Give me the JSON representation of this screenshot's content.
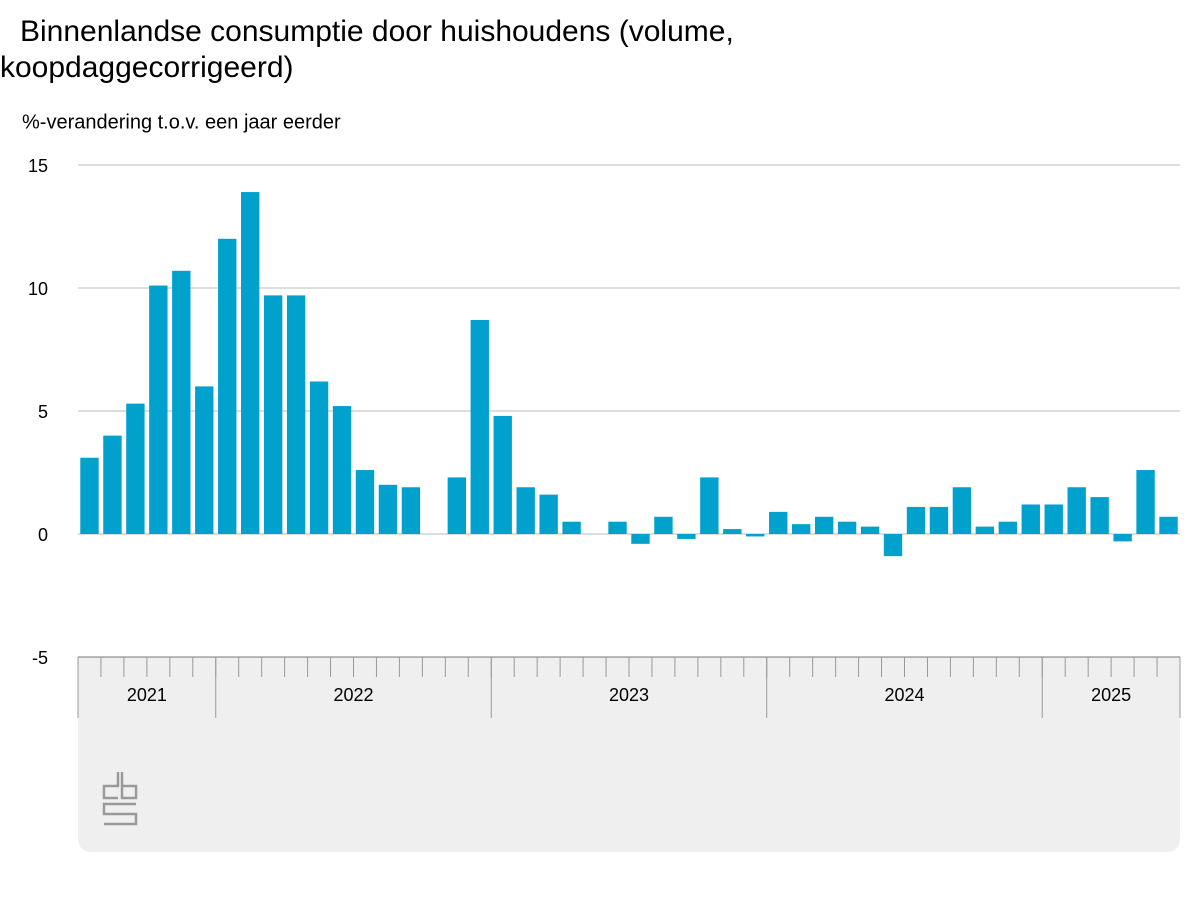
{
  "chart_data": {
    "type": "bar",
    "title": "Binnenlandse consumptie door huishoudens (volume, koopdaggecorrigeerd)",
    "subtitle": "%-verandering t.o.v. een jaar eerder",
    "categories": [
      null,
      null,
      null,
      null,
      null,
      null,
      null,
      null,
      null,
      null,
      null,
      null,
      null,
      null,
      null,
      null,
      null,
      null,
      null,
      null,
      null,
      null,
      null,
      null,
      null,
      null,
      null,
      null,
      null,
      null,
      null,
      null,
      null,
      null,
      null,
      null,
      null,
      null,
      null,
      null,
      null,
      null,
      null,
      null,
      null,
      null,
      null,
      null
    ],
    "values": [
      3.1,
      4.0,
      5.3,
      10.1,
      10.7,
      6.0,
      12.0,
      13.9,
      9.7,
      9.7,
      6.2,
      5.2,
      2.6,
      2.0,
      1.9,
      null,
      2.3,
      8.7,
      4.8,
      1.9,
      1.6,
      0.5,
      null,
      0.5,
      -0.4,
      0.7,
      -0.2,
      2.3,
      0.2,
      -0.1,
      0.9,
      0.4,
      0.7,
      0.5,
      0.3,
      -0.9,
      1.1,
      1.1,
      1.9,
      0.3,
      0.5,
      1.2,
      1.2,
      1.9,
      1.5,
      -0.3,
      2.6,
      0.7
    ],
    "groups": [
      {
        "label": "2021",
        "size": 6
      },
      {
        "label": "2022",
        "size": 12
      },
      {
        "label": "2023",
        "size": 12
      },
      {
        "label": "2024",
        "size": 12
      },
      {
        "label": "2025",
        "size": 6
      }
    ],
    "color": "#00a1cd",
    "ylim": [
      -5,
      15
    ],
    "yticks": [
      -5,
      0,
      5,
      10,
      15
    ],
    "grid": true
  }
}
